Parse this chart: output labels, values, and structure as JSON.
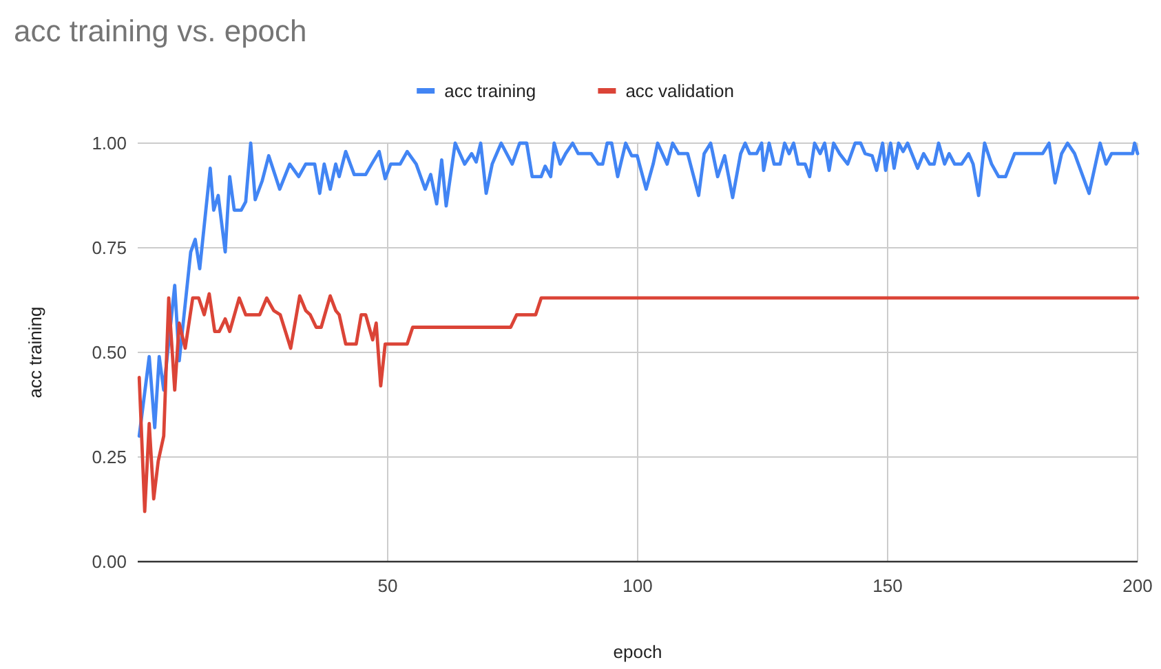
{
  "chart_data": {
    "type": "line",
    "title": "acc training vs. epoch",
    "xlabel": "epoch",
    "ylabel": "acc training",
    "legend": "top",
    "grid": true,
    "line_style": "solid",
    "marker": "none",
    "xlim": [
      0,
      200
    ],
    "xticks": [
      50,
      100,
      150,
      200
    ],
    "ylim": [
      0,
      1
    ],
    "yticks": [
      {
        "value": 0,
        "label": "0.00"
      },
      {
        "value": 0.25,
        "label": "0.25"
      },
      {
        "value": 0.5,
        "label": "0.50"
      },
      {
        "value": 0.75,
        "label": "0.75"
      },
      {
        "value": 1,
        "label": "1.00"
      }
    ],
    "series": [
      {
        "name": "acc training",
        "color": "#4285f4",
        "x": [
          0.3,
          2.3,
          3.4,
          4.3,
          5.2,
          7.4,
          8.3,
          10.6,
          11.5,
          12.4,
          14.5,
          15.2,
          16.1,
          17.5,
          18.4,
          19.3,
          20.7,
          21.6,
          22.6,
          23.5,
          24.9,
          26.2,
          28.4,
          30.4,
          32.2,
          33.6,
          35.4,
          36.4,
          37.3,
          38.5,
          39.6,
          40.3,
          41.6,
          43.3,
          45.6,
          46.8,
          48.3,
          49.5,
          50.6,
          52.5,
          53.9,
          55.7,
          57.5,
          58.6,
          59.8,
          60.8,
          61.7,
          63.5,
          65.4,
          66.8,
          67.7,
          68.6,
          69.7,
          70.9,
          72.7,
          74.9,
          76.4,
          77.8,
          78.9,
          80.7,
          81.5,
          82.6,
          83.3,
          84.5,
          85.6,
          87,
          88.1,
          90.7,
          92.1,
          93,
          93.9,
          94.8,
          96,
          97.6,
          98.8,
          99.9,
          101.7,
          103.1,
          104,
          105.9,
          107,
          108.2,
          110,
          112.2,
          113.3,
          114.6,
          116,
          117.4,
          119,
          120.6,
          121.5,
          122.4,
          123.8,
          124.8,
          125.2,
          126.3,
          127.3,
          128.5,
          129.4,
          130.3,
          131.2,
          132.1,
          133.5,
          134.4,
          135.4,
          136.5,
          137.4,
          138.3,
          139.2,
          140.4,
          142,
          143.5,
          144.6,
          145.5,
          146.9,
          147.8,
          149,
          149.6,
          150.6,
          151.3,
          152.2,
          153.1,
          154,
          156,
          157.2,
          158.4,
          159.3,
          160.2,
          161.4,
          162.3,
          163.4,
          164.8,
          166.2,
          167.1,
          168.2,
          169.4,
          170.8,
          172.2,
          173.6,
          175.4,
          181,
          182.3,
          183.5,
          184.8,
          186,
          187.4,
          190.3,
          192.5,
          193.7,
          194.8,
          199,
          199.4,
          200
        ],
        "values": [
          0.3,
          0.49,
          0.32,
          0.49,
          0.41,
          0.66,
          0.48,
          0.74,
          0.77,
          0.7,
          0.94,
          0.84,
          0.875,
          0.74,
          0.92,
          0.84,
          0.84,
          0.86,
          1.0,
          0.865,
          0.91,
          0.97,
          0.89,
          0.95,
          0.92,
          0.95,
          0.95,
          0.88,
          0.95,
          0.89,
          0.95,
          0.92,
          0.98,
          0.925,
          0.925,
          0.95,
          0.98,
          0.915,
          0.95,
          0.95,
          0.98,
          0.95,
          0.89,
          0.925,
          0.855,
          0.96,
          0.85,
          1.0,
          0.95,
          0.975,
          0.955,
          1.0,
          0.88,
          0.95,
          1.0,
          0.95,
          1.0,
          1.0,
          0.92,
          0.92,
          0.945,
          0.92,
          1.0,
          0.95,
          0.975,
          1.0,
          0.975,
          0.975,
          0.95,
          0.95,
          1.0,
          1.0,
          0.92,
          1.0,
          0.97,
          0.97,
          0.89,
          0.95,
          1.0,
          0.95,
          1.0,
          0.975,
          0.975,
          0.875,
          0.975,
          1.0,
          0.92,
          0.97,
          0.87,
          0.975,
          1.0,
          0.975,
          0.975,
          1.0,
          0.935,
          1.0,
          0.95,
          0.95,
          1.0,
          0.975,
          1.0,
          0.95,
          0.95,
          0.92,
          1.0,
          0.975,
          1.0,
          0.935,
          1.0,
          0.975,
          0.95,
          1.0,
          1.0,
          0.975,
          0.97,
          0.935,
          1.0,
          0.935,
          1.0,
          0.94,
          1.0,
          0.98,
          1.0,
          0.94,
          0.975,
          0.95,
          0.95,
          1.0,
          0.95,
          0.975,
          0.95,
          0.95,
          0.975,
          0.95,
          0.875,
          1.0,
          0.95,
          0.92,
          0.92,
          0.975,
          0.975,
          1.0,
          0.905,
          0.975,
          1.0,
          0.975,
          0.88,
          1.0,
          0.95,
          0.975,
          0.975,
          1.0,
          0.975
        ]
      },
      {
        "name": "acc validation",
        "color": "#db4437",
        "x": [
          0.3,
          1.4,
          2.3,
          3.2,
          4.1,
          5.2,
          6.2,
          7.4,
          8.3,
          9.5,
          11,
          12.2,
          13.3,
          14.3,
          15.4,
          16.3,
          17.5,
          18.4,
          20.3,
          21.6,
          24.4,
          25.8,
          27.2,
          28.5,
          30.6,
          32.4,
          33.6,
          34.5,
          35.7,
          36.7,
          38.5,
          39.6,
          40.3,
          41.6,
          43.7,
          44.7,
          45.6,
          47,
          47.7,
          48.6,
          49.5,
          51.6,
          53.9,
          55,
          74.6,
          75.8,
          79.6,
          80.7,
          200
        ],
        "values": [
          0.44,
          0.12,
          0.33,
          0.15,
          0.24,
          0.3,
          0.63,
          0.41,
          0.57,
          0.51,
          0.63,
          0.63,
          0.59,
          0.64,
          0.55,
          0.55,
          0.58,
          0.55,
          0.63,
          0.59,
          0.59,
          0.63,
          0.6,
          0.59,
          0.51,
          0.635,
          0.6,
          0.59,
          0.56,
          0.56,
          0.635,
          0.6,
          0.59,
          0.52,
          0.52,
          0.59,
          0.59,
          0.53,
          0.57,
          0.42,
          0.52,
          0.52,
          0.52,
          0.56,
          0.56,
          0.59,
          0.59,
          0.63,
          0.63
        ]
      }
    ]
  }
}
